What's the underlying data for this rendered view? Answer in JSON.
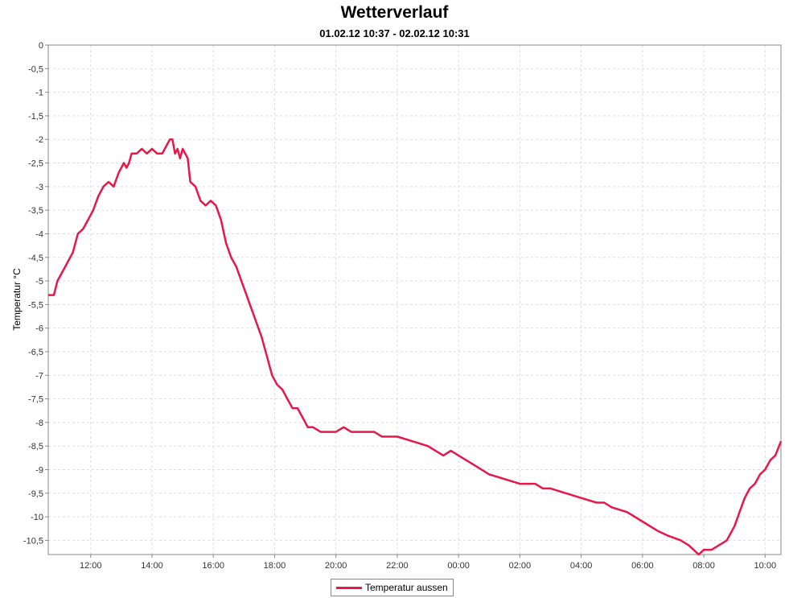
{
  "chart_data": {
    "type": "line",
    "title": "Wetterverlauf",
    "subtitle": "01.02.12 10:37 - 02.02.12 10:31",
    "xlabel": "",
    "ylabel": "Temperatur °C",
    "x_ticks": [
      "12:00",
      "14:00",
      "16:00",
      "18:00",
      "20:00",
      "22:00",
      "00:00",
      "02:00",
      "04:00",
      "06:00",
      "08:00",
      "10:00"
    ],
    "y_ticks": [
      "0",
      "-0,5",
      "-1",
      "-1,5",
      "-2",
      "-2,5",
      "-3",
      "-3,5",
      "-4",
      "-4,5",
      "-5",
      "-5,5",
      "-6",
      "-6,5",
      "-7",
      "-7,5",
      "-8",
      "-8,5",
      "-9",
      "-9,5",
      "-10",
      "-10,5"
    ],
    "x_range": [
      "01.02.12 10:37",
      "02.02.12 10:31"
    ],
    "ylim": [
      -10.8,
      0
    ],
    "grid": true,
    "legend_position": "bottom-center",
    "series": [
      {
        "name": "Temperatur aussen",
        "color": "#e8174a",
        "x": [
          "10:37",
          "10:48",
          "10:55",
          "11:10",
          "11:25",
          "11:35",
          "11:45",
          "11:55",
          "12:05",
          "12:15",
          "12:25",
          "12:35",
          "12:45",
          "12:55",
          "13:05",
          "13:10",
          "13:15",
          "13:20",
          "13:30",
          "13:40",
          "13:50",
          "14:00",
          "14:10",
          "14:20",
          "14:30",
          "14:35",
          "14:40",
          "14:45",
          "14:50",
          "14:55",
          "15:00",
          "15:10",
          "15:15",
          "15:25",
          "15:35",
          "15:45",
          "15:55",
          "16:05",
          "16:15",
          "16:25",
          "16:35",
          "16:45",
          "16:55",
          "17:05",
          "17:15",
          "17:25",
          "17:35",
          "17:45",
          "17:55",
          "18:05",
          "18:15",
          "18:25",
          "18:35",
          "18:45",
          "18:55",
          "19:05",
          "19:15",
          "19:30",
          "19:45",
          "20:00",
          "20:15",
          "20:30",
          "20:45",
          "21:00",
          "21:15",
          "21:30",
          "21:45",
          "22:00",
          "22:30",
          "23:00",
          "23:30",
          "23:45",
          "00:00",
          "00:15",
          "00:30",
          "00:45",
          "01:00",
          "01:30",
          "02:00",
          "02:15",
          "02:30",
          "02:45",
          "03:00",
          "03:30",
          "04:00",
          "04:30",
          "04:45",
          "05:00",
          "05:30",
          "06:00",
          "06:30",
          "06:50",
          "07:15",
          "07:30",
          "07:40",
          "07:50",
          "08:00",
          "08:15",
          "08:30",
          "08:45",
          "09:00",
          "09:10",
          "09:20",
          "09:30",
          "09:40",
          "09:50",
          "10:00",
          "10:10",
          "10:20",
          "10:31"
        ],
        "values": [
          -5.3,
          -5.3,
          -5.0,
          -4.7,
          -4.4,
          -4.0,
          -3.9,
          -3.7,
          -3.5,
          -3.2,
          -3.0,
          -2.9,
          -3.0,
          -2.7,
          -2.5,
          -2.6,
          -2.5,
          -2.3,
          -2.3,
          -2.2,
          -2.3,
          -2.2,
          -2.3,
          -2.3,
          -2.1,
          -2.0,
          -2.0,
          -2.3,
          -2.2,
          -2.4,
          -2.2,
          -2.4,
          -2.9,
          -3.0,
          -3.3,
          -3.4,
          -3.3,
          -3.4,
          -3.7,
          -4.2,
          -4.5,
          -4.7,
          -5.0,
          -5.3,
          -5.6,
          -5.9,
          -6.2,
          -6.6,
          -7.0,
          -7.2,
          -7.3,
          -7.5,
          -7.7,
          -7.7,
          -7.9,
          -8.1,
          -8.1,
          -8.2,
          -8.2,
          -8.2,
          -8.1,
          -8.2,
          -8.2,
          -8.2,
          -8.2,
          -8.3,
          -8.3,
          -8.3,
          -8.4,
          -8.5,
          -8.7,
          -8.6,
          -8.7,
          -8.8,
          -8.9,
          -9.0,
          -9.1,
          -9.2,
          -9.3,
          -9.3,
          -9.3,
          -9.4,
          -9.4,
          -9.5,
          -9.6,
          -9.7,
          -9.7,
          -9.8,
          -9.9,
          -10.1,
          -10.3,
          -10.4,
          -10.5,
          -10.6,
          -10.7,
          -10.8,
          -10.7,
          -10.7,
          -10.6,
          -10.5,
          -10.2,
          -9.9,
          -9.6,
          -9.4,
          -9.3,
          -9.1,
          -9.0,
          -8.8,
          -8.7,
          -8.4
        ]
      }
    ]
  }
}
